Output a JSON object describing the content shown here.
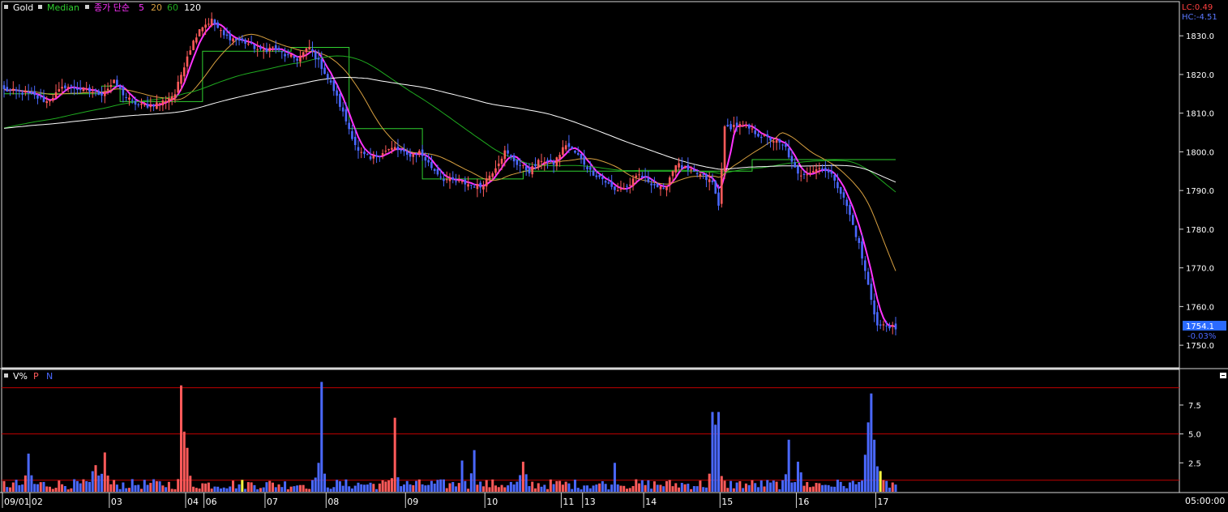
{
  "price_panel": {
    "legend": [
      "Gold",
      "Median",
      "종가 단순",
      "5",
      "20",
      "60",
      "120"
    ],
    "lc_label": "LC:0.49",
    "hc_label": "HC:-4.51",
    "current_price": "1754.1",
    "current_change": "-0.03%",
    "y_ticks": [
      "1830.0",
      "1820.0",
      "1810.0",
      "1800.0",
      "1790.0",
      "1780.0",
      "1770.0",
      "1760.0",
      "1750.0"
    ]
  },
  "volume_panel": {
    "legend": [
      "V%",
      "P",
      "N"
    ],
    "y_ticks": [
      "7.5",
      "5.0",
      "2.5"
    ]
  },
  "time_axis": {
    "labels": [
      "09/01",
      "02",
      "03",
      "04",
      "06",
      "07",
      "08",
      "09",
      "10",
      "11",
      "13",
      "14",
      "15",
      "16",
      "17"
    ],
    "time_label": "05:00:00"
  },
  "colors": {
    "background": "#000000",
    "up_candle": "#ff5a5a",
    "down_candle": "#4a68ff",
    "ma5": "#ff33ff",
    "ma20": "#d8a040",
    "ma60": "#1faa1f",
    "ma120": "#ffffff",
    "median": "#30d030",
    "grid_red": "#c00000"
  },
  "chart_data": {
    "type": "candlestick",
    "y_range": [
      1745,
      1838
    ],
    "price_levels": [
      1830,
      1820,
      1810,
      1800,
      1790,
      1780,
      1770,
      1760,
      1750
    ],
    "close_path": [
      [
        0,
        1816
      ],
      [
        8,
        1815
      ],
      [
        14,
        1813
      ],
      [
        20,
        1817
      ],
      [
        26,
        1816
      ],
      [
        32,
        1815
      ],
      [
        36,
        1818
      ],
      [
        40,
        1814
      ],
      [
        44,
        1812
      ],
      [
        48,
        1812
      ],
      [
        52,
        1813
      ],
      [
        56,
        1815
      ],
      [
        60,
        1825
      ],
      [
        64,
        1832
      ],
      [
        68,
        1834
      ],
      [
        72,
        1830
      ],
      [
        76,
        1829
      ],
      [
        80,
        1828
      ],
      [
        84,
        1826
      ],
      [
        88,
        1827
      ],
      [
        92,
        1825
      ],
      [
        96,
        1824
      ],
      [
        100,
        1827
      ],
      [
        104,
        1822
      ],
      [
        108,
        1816
      ],
      [
        112,
        1808
      ],
      [
        116,
        1800
      ],
      [
        120,
        1798
      ],
      [
        124,
        1800
      ],
      [
        128,
        1801
      ],
      [
        132,
        1799
      ],
      [
        136,
        1800
      ],
      [
        140,
        1796
      ],
      [
        144,
        1793
      ],
      [
        150,
        1792
      ],
      [
        156,
        1791
      ],
      [
        160,
        1795
      ],
      [
        164,
        1800
      ],
      [
        168,
        1797
      ],
      [
        172,
        1795
      ],
      [
        176,
        1798
      ],
      [
        180,
        1797
      ],
      [
        184,
        1802
      ],
      [
        188,
        1799
      ],
      [
        192,
        1795
      ],
      [
        196,
        1793
      ],
      [
        200,
        1790
      ],
      [
        204,
        1791
      ],
      [
        208,
        1794
      ],
      [
        212,
        1792
      ],
      [
        216,
        1790
      ],
      [
        220,
        1797
      ],
      [
        224,
        1795
      ],
      [
        228,
        1794
      ],
      [
        232,
        1792
      ],
      [
        234,
        1786
      ],
      [
        236,
        1806
      ],
      [
        240,
        1807
      ],
      [
        244,
        1806
      ],
      [
        248,
        1804
      ],
      [
        252,
        1803
      ],
      [
        256,
        1801
      ],
      [
        258,
        1797
      ],
      [
        260,
        1794
      ],
      [
        264,
        1795
      ],
      [
        268,
        1796
      ],
      [
        272,
        1793
      ],
      [
        276,
        1786
      ],
      [
        280,
        1776
      ],
      [
        284,
        1762
      ],
      [
        286,
        1755
      ],
      [
        290,
        1755
      ],
      [
        292,
        1754.1
      ]
    ],
    "moving_averages": [
      {
        "name": "5",
        "period": 5
      },
      {
        "name": "20",
        "period": 20
      },
      {
        "name": "60",
        "period": 60
      },
      {
        "name": "120",
        "period": 120
      }
    ],
    "median_steps": [
      [
        0,
        1815
      ],
      [
        32,
        1817
      ],
      [
        38,
        1813
      ],
      [
        65,
        1826
      ],
      [
        94,
        1827
      ],
      [
        113,
        1806
      ],
      [
        137,
        1793
      ],
      [
        160,
        1793
      ],
      [
        170,
        1795
      ],
      [
        245,
        1798
      ],
      [
        292,
        1798
      ]
    ],
    "volume_levels": [
      9.0,
      5.0,
      1.0
    ],
    "volume_peaks": [
      [
        8,
        3.3
      ],
      [
        30,
        2.3
      ],
      [
        33,
        3.4
      ],
      [
        58,
        9.2
      ],
      [
        59,
        5.2
      ],
      [
        60,
        3.8
      ],
      [
        103,
        2.5
      ],
      [
        104,
        9.5
      ],
      [
        128,
        6.4
      ],
      [
        150,
        2.7
      ],
      [
        154,
        3.6
      ],
      [
        170,
        2.6
      ],
      [
        200,
        2.5
      ],
      [
        232,
        6.9
      ],
      [
        233,
        5.8
      ],
      [
        234,
        6.9
      ],
      [
        257,
        4.5
      ],
      [
        260,
        2.6
      ],
      [
        282,
        3.2
      ],
      [
        283,
        6.0
      ],
      [
        284,
        8.5
      ],
      [
        285,
        4.5
      ],
      [
        286,
        2.2
      ]
    ]
  }
}
